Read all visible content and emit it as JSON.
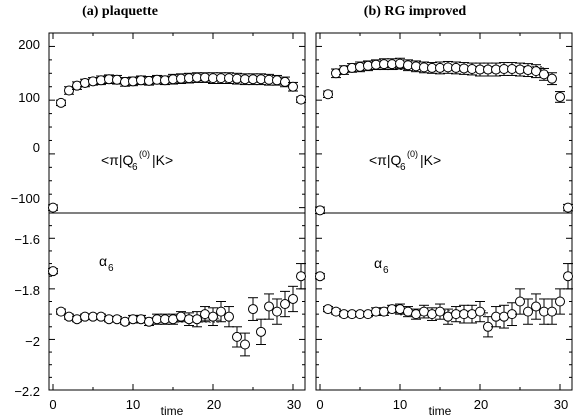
{
  "figure": {
    "title_a": "(a) plaquette",
    "title_b": "(b) RG improved",
    "xlabel": "time",
    "top_annotation": {
      "pre": "<π|Q",
      "sub": "6",
      "sup": "(0)",
      "post": "|K>"
    },
    "bottom_annotation": {
      "main": "α",
      "sub": "6"
    },
    "y_ticks_top": [
      "200",
      "100",
      "0",
      "−100"
    ],
    "y_ticks_bottom": [
      "−1.6",
      "−1.8",
      "−2",
      "−2.2"
    ],
    "x_ticks": [
      "0",
      "10",
      "20",
      "30"
    ],
    "colors": {
      "axis": "#000000",
      "marker_fill": "#ffffff",
      "fit": "#000000"
    }
  },
  "chart_data": [
    {
      "panel": "a-top",
      "type": "scatter",
      "xlim": [
        -0.5,
        31.5
      ],
      "ylim": [
        -110,
        225
      ],
      "x": [
        0,
        1,
        2,
        3,
        4,
        5,
        6,
        7,
        8,
        9,
        10,
        11,
        12,
        13,
        14,
        15,
        16,
        17,
        18,
        19,
        20,
        21,
        22,
        23,
        24,
        25,
        26,
        27,
        28,
        29,
        30,
        31
      ],
      "y": [
        -100,
        95,
        118,
        127,
        132,
        135,
        137,
        139,
        138,
        134,
        135,
        137,
        136,
        138,
        137,
        139,
        140,
        141,
        142,
        142,
        141,
        141,
        141,
        140,
        139,
        139,
        139,
        138,
        137,
        134,
        125,
        101
      ],
      "err": [
        5,
        5,
        7,
        7,
        7,
        7,
        8,
        8,
        8,
        8,
        8,
        8,
        8,
        8,
        8,
        9,
        9,
        9,
        9,
        9,
        10,
        10,
        10,
        10,
        10,
        10,
        10,
        10,
        9,
        9,
        8,
        5
      ],
      "fit": {
        "x": [
          7,
          28
        ],
        "y": 136,
        "band": 3
      }
    },
    {
      "panel": "b-top",
      "type": "scatter",
      "xlim": [
        -0.5,
        31.5
      ],
      "ylim": [
        -110,
        225
      ],
      "x": [
        0,
        1,
        2,
        3,
        4,
        5,
        6,
        7,
        8,
        9,
        10,
        11,
        12,
        13,
        14,
        15,
        16,
        17,
        18,
        19,
        20,
        21,
        22,
        23,
        24,
        25,
        26,
        27,
        28,
        29,
        30,
        31
      ],
      "y": [
        -105,
        111,
        150,
        156,
        160,
        162,
        164,
        166,
        167,
        167,
        168,
        165,
        163,
        161,
        160,
        160,
        161,
        160,
        159,
        158,
        157,
        157,
        157,
        158,
        158,
        157,
        156,
        154,
        148,
        140,
        106,
        -100
      ],
      "err": [
        6,
        6,
        8,
        8,
        8,
        9,
        9,
        9,
        10,
        10,
        10,
        10,
        10,
        10,
        10,
        11,
        11,
        11,
        11,
        11,
        12,
        12,
        12,
        12,
        12,
        12,
        12,
        12,
        11,
        11,
        10,
        6
      ],
      "fit": {
        "x": [
          7,
          28
        ],
        "y": 160,
        "band": 3
      }
    },
    {
      "panel": "a-bottom",
      "type": "scatter",
      "xlim": [
        -0.5,
        31.5
      ],
      "ylim": [
        -2.2,
        -1.5
      ],
      "x": [
        0,
        1,
        2,
        3,
        4,
        5,
        6,
        7,
        8,
        9,
        10,
        11,
        12,
        13,
        14,
        15,
        16,
        17,
        18,
        19,
        20,
        21,
        22,
        23,
        24,
        25,
        26,
        27,
        28,
        29,
        30,
        31
      ],
      "y": [
        -1.73,
        -1.89,
        -1.91,
        -1.92,
        -1.91,
        -1.91,
        -1.91,
        -1.92,
        -1.92,
        -1.93,
        -1.92,
        -1.92,
        -1.93,
        -1.92,
        -1.92,
        -1.92,
        -1.91,
        -1.92,
        -1.92,
        -1.9,
        -1.91,
        -1.89,
        -1.91,
        -1.99,
        -2.02,
        -1.88,
        -1.97,
        -1.87,
        -1.89,
        -1.86,
        -1.84,
        -1.75
      ],
      "err": [
        0.01,
        0.01,
        0.01,
        0.01,
        0.01,
        0.01,
        0.01,
        0.01,
        0.01,
        0.01,
        0.015,
        0.015,
        0.015,
        0.02,
        0.02,
        0.02,
        0.02,
        0.025,
        0.03,
        0.03,
        0.035,
        0.04,
        0.04,
        0.04,
        0.045,
        0.045,
        0.05,
        0.05,
        0.05,
        0.05,
        0.05,
        0.05
      ],
      "fit": {
        "x": [
          9,
          21
        ],
        "y": -1.924,
        "band": 0.008
      }
    },
    {
      "panel": "b-bottom",
      "type": "scatter",
      "xlim": [
        -0.5,
        31.5
      ],
      "ylim": [
        -2.2,
        -1.5
      ],
      "x": [
        0,
        1,
        2,
        3,
        4,
        5,
        6,
        7,
        8,
        9,
        10,
        11,
        12,
        13,
        14,
        15,
        16,
        17,
        18,
        19,
        20,
        21,
        22,
        23,
        24,
        25,
        26,
        27,
        28,
        29,
        30,
        31
      ],
      "y": [
        -1.75,
        -1.88,
        -1.89,
        -1.9,
        -1.9,
        -1.9,
        -1.9,
        -1.89,
        -1.89,
        -1.88,
        -1.88,
        -1.89,
        -1.9,
        -1.89,
        -1.9,
        -1.89,
        -1.91,
        -1.9,
        -1.9,
        -1.9,
        -1.89,
        -1.95,
        -1.91,
        -1.91,
        -1.9,
        -1.85,
        -1.89,
        -1.87,
        -1.89,
        -1.89,
        -1.85,
        -1.75
      ],
      "err": [
        0.01,
        0.01,
        0.01,
        0.01,
        0.01,
        0.01,
        0.01,
        0.015,
        0.015,
        0.015,
        0.02,
        0.02,
        0.02,
        0.025,
        0.025,
        0.03,
        0.03,
        0.03,
        0.035,
        0.035,
        0.04,
        0.04,
        0.04,
        0.045,
        0.045,
        0.05,
        0.05,
        0.05,
        0.05,
        0.05,
        0.05,
        0.05
      ],
      "fit": {
        "x": [
          10,
          21
        ],
        "y": -1.895,
        "band": 0.008
      }
    }
  ]
}
